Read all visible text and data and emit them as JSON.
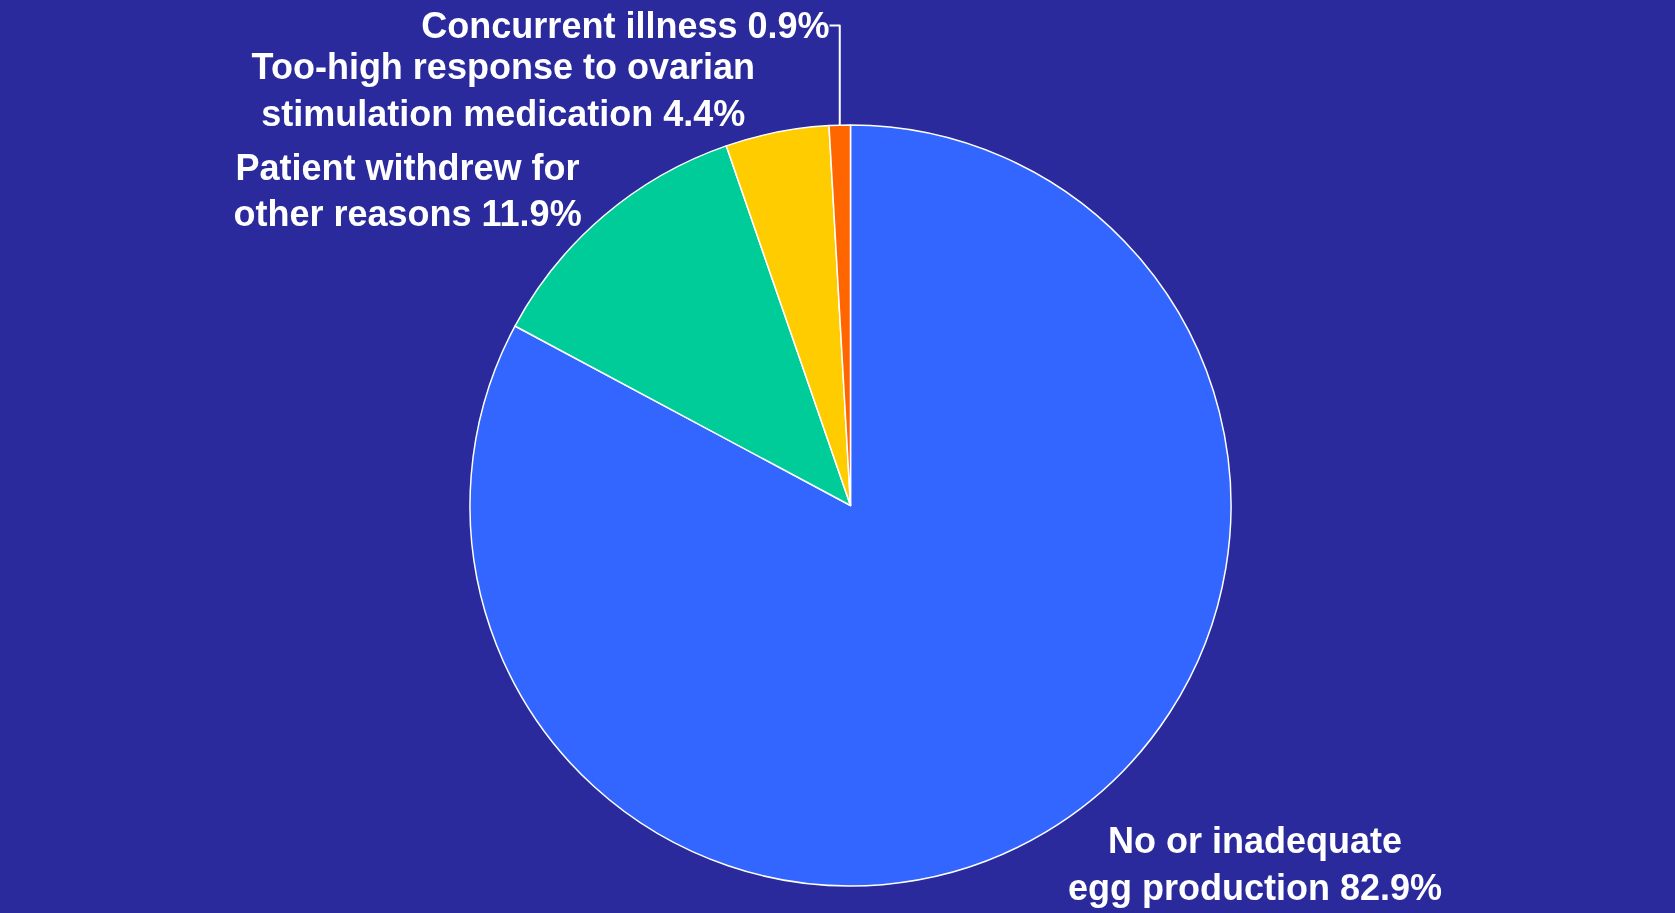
{
  "chart_data": {
    "type": "pie",
    "categories": [
      "No or inadequate\negg production",
      "Patient withdrew for\nother reasons",
      "Too-high response to ovarian\nstimulation medication",
      "Concurrent illness"
    ],
    "values": [
      82.9,
      11.9,
      4.4,
      0.9
    ],
    "value_labels": [
      "82.9%",
      "11.9%",
      "4.4%",
      "0.9%"
    ],
    "colors": [
      "#3366ff",
      "#00cc99",
      "#ffcc00",
      "#ff6600"
    ],
    "legend": false
  }
}
